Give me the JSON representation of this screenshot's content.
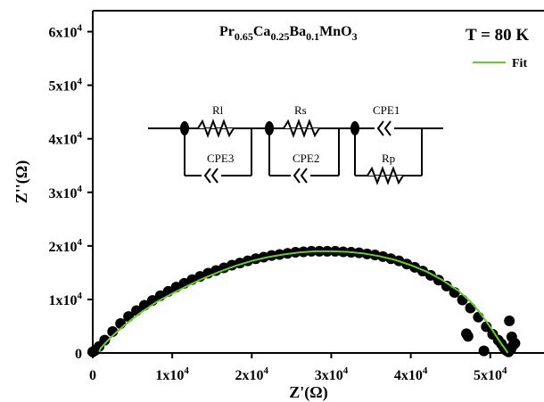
{
  "chart_data": {
    "type": "scatter",
    "title": "",
    "xlabel": "Z'(Ω)",
    "ylabel": "Z''(Ω)",
    "xlim": [
      0,
      65000
    ],
    "ylim": [
      0,
      65000
    ],
    "x_ticks": [
      0,
      10000,
      20000,
      30000,
      40000,
      50000,
      60000
    ],
    "y_ticks": [
      0,
      10000,
      20000,
      30000,
      40000,
      50000,
      60000
    ],
    "x_tick_labels": [
      "0",
      "1x10^4",
      "2x10^4",
      "3x10^4",
      "4x10^4",
      "5x10^4",
      "6x10^4"
    ],
    "y_tick_labels": [
      "0",
      "1x10^4",
      "2x10^4",
      "3x10^4",
      "4x10^4",
      "5x10^4",
      "6x10^4"
    ],
    "grid": false,
    "legend": {
      "position": "top-right",
      "entries": [
        "Fit"
      ]
    },
    "annotations": {
      "compound": "Pr0.65Ca0.25Ba0.1MnO3",
      "temperature": "T = 80 K",
      "circuit_labels": [
        "Rl",
        "Rs",
        "CPE1",
        "CPE3",
        "CPE2",
        "Rp"
      ]
    },
    "series": [
      {
        "role": "data",
        "color": "#000000",
        "x": [
          0,
          300,
          800,
          1500,
          2500,
          3500,
          4500,
          5500,
          6500,
          7500,
          8500,
          9500,
          10500,
          11500,
          12500,
          13500,
          14500,
          15500,
          16500,
          17500,
          18500,
          19500,
          20500,
          21500,
          22500,
          23500,
          24500,
          25500,
          26500,
          27500,
          28500,
          29500,
          30500,
          31500,
          32500,
          33500,
          34500,
          35500,
          36500,
          37500,
          38500,
          39500,
          40500,
          41500,
          42500,
          43500,
          44500,
          45500,
          46500,
          47500,
          48500,
          49500,
          50300,
          51000,
          51400,
          51700,
          51900,
          52100,
          52300,
          52600,
          52900,
          47000,
          47200,
          49200,
          52700,
          52400,
          53100,
          58000
        ],
        "y": [
          200,
          500,
          1200,
          2400,
          4000,
          5500,
          6800,
          7900,
          8900,
          9800,
          10700,
          11500,
          12300,
          13000,
          13700,
          14300,
          14900,
          15400,
          15900,
          16400,
          16800,
          17200,
          17600,
          17900,
          18200,
          18400,
          18600,
          18800,
          18900,
          19000,
          19000,
          19000,
          19000,
          18900,
          18800,
          18700,
          18500,
          18300,
          18000,
          17600,
          17200,
          16600,
          16000,
          15300,
          14500,
          13600,
          12500,
          11300,
          9900,
          8400,
          6700,
          4900,
          3500,
          2400,
          1700,
          1000,
          600,
          400,
          200,
          700,
          1500,
          3600,
          3100,
          400,
          3000,
          6000,
          1800,
          8200
        ]
      },
      {
        "name": "Fit",
        "role": "fit",
        "color": "#66cc33",
        "x": [
          800,
          1000,
          1500,
          2000,
          3000,
          4000,
          5000,
          6000,
          7000,
          8000,
          9000,
          10000,
          12000,
          14000,
          16000,
          18000,
          20000,
          22000,
          24000,
          26000,
          28000,
          30000,
          32000,
          34000,
          36000,
          38000,
          40000,
          42000,
          44000,
          46000,
          47500,
          48500,
          49500,
          50300,
          51000,
          51500,
          51900,
          52200
        ],
        "y": [
          200,
          900,
          1700,
          2500,
          3900,
          5200,
          6400,
          7500,
          8500,
          9500,
          10300,
          11100,
          12600,
          14000,
          15200,
          16300,
          17200,
          17900,
          18400,
          18800,
          19000,
          19000,
          18900,
          18600,
          18100,
          17400,
          16400,
          15200,
          13600,
          11600,
          9600,
          7900,
          5900,
          4200,
          2600,
          1500,
          700,
          0
        ]
      }
    ]
  }
}
